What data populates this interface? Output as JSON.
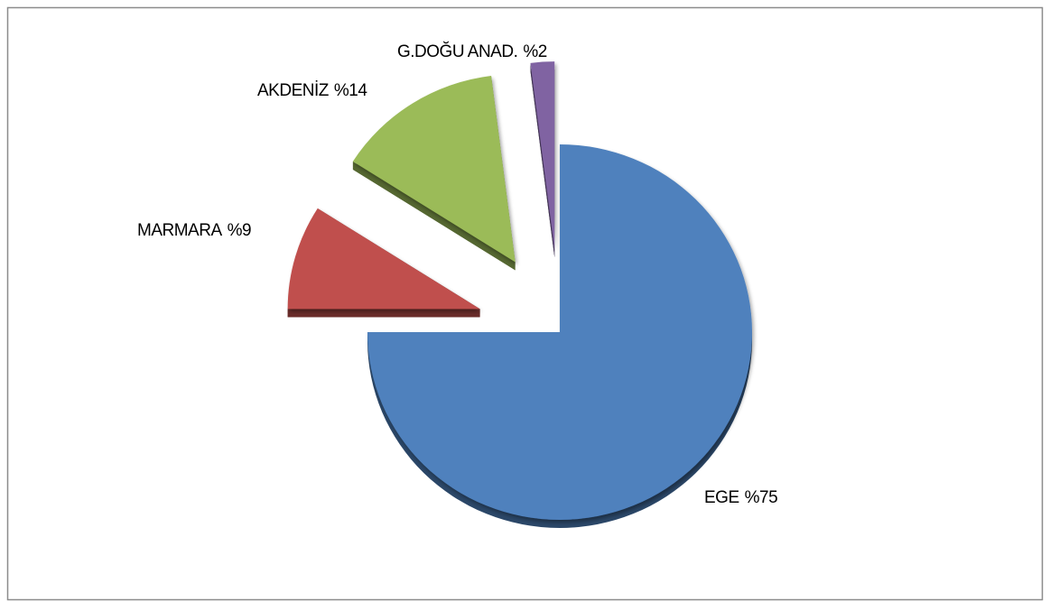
{
  "chart_data": {
    "type": "pie",
    "categories": [
      "EGE",
      "MARMARA",
      "AKDENİZ",
      "G.DOĞU ANAD."
    ],
    "values": [
      75,
      9,
      14,
      2
    ],
    "value_labels": [
      "%75",
      "%9",
      "%14",
      "%2"
    ],
    "colors": [
      "#4f81bd",
      "#c0504d",
      "#9bbb59",
      "#8064a2"
    ],
    "exploded": [
      false,
      true,
      true,
      true
    ]
  }
}
